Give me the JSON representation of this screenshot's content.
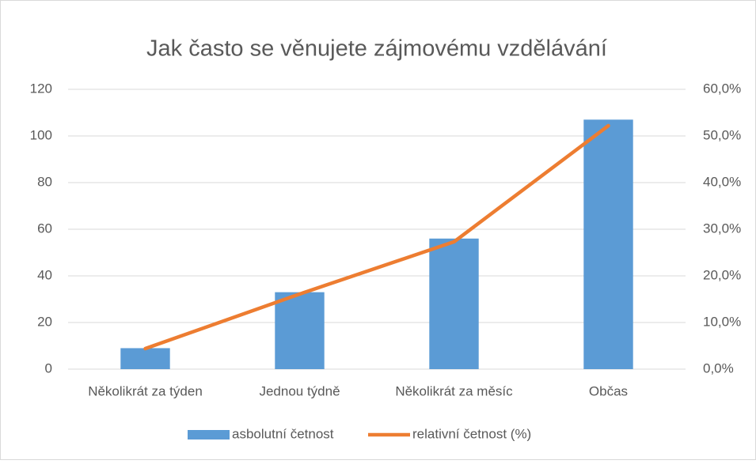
{
  "chart_data": {
    "type": "combo",
    "title": "Jak často se věnujete zájmovému vzdělávání",
    "categories": [
      "Několikrát za týden",
      "Jednou týdně",
      "Několikrát za měsíc",
      "Občas"
    ],
    "series": [
      {
        "name": "asbolutní četnost",
        "type": "bar",
        "color": "#5b9bd5",
        "values": [
          9,
          33,
          56,
          107
        ]
      },
      {
        "name": "relativní četnost (%)",
        "type": "line",
        "axis": "y2",
        "color": "#ed7d31",
        "values": [
          4.4,
          16.1,
          27.3,
          52.2
        ]
      }
    ],
    "ylim": [
      0,
      120
    ],
    "yticks": [
      0,
      20,
      40,
      60,
      80,
      100,
      120
    ],
    "y2lim": [
      0,
      60
    ],
    "y2ticks": [
      {
        "value": 0,
        "label": "0,0%"
      },
      {
        "value": 10,
        "label": "10,0%"
      },
      {
        "value": 20,
        "label": "20,0%"
      },
      {
        "value": 30,
        "label": "30,0%"
      },
      {
        "value": 40,
        "label": "40,0%"
      },
      {
        "value": 50,
        "label": "50,0%"
      },
      {
        "value": 60,
        "label": "60,0%"
      }
    ],
    "grid": true,
    "legend": "bottom"
  }
}
